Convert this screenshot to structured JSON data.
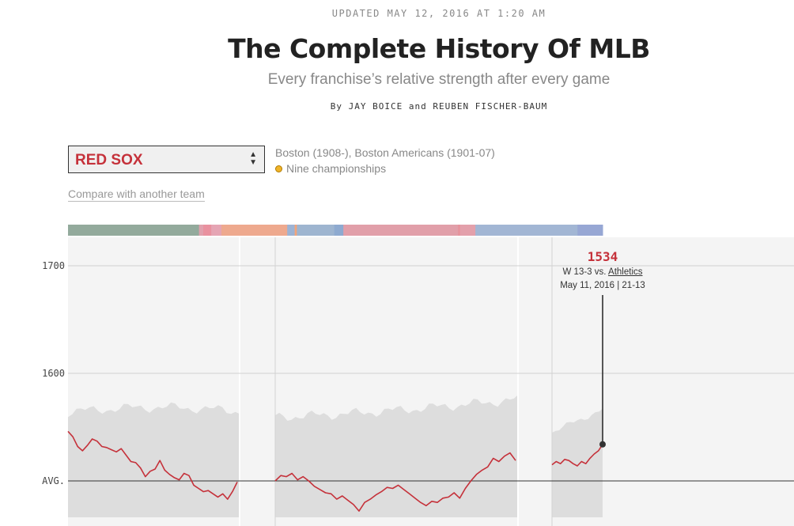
{
  "header": {
    "updated": "UPDATED MAY 12, 2016 AT 1:20 AM",
    "title": "The Complete History Of MLB",
    "subtitle": "Every franchise’s relative strength after every game",
    "byline": "By JAY BOICE and REUBEN FISCHER-BAUM"
  },
  "team_selector": {
    "selected": "RED SOX",
    "icon": "up-down-chevron-icon",
    "history": "Boston (1908-), Boston Americans (1901-07)",
    "championships": "Nine championships",
    "compare_link": "Compare with another team"
  },
  "tooltip": {
    "value": "1534",
    "result_prefix": "W 13-3 vs. ",
    "opponent": "Athletics",
    "date_record": "May 11, 2016 | 21-13"
  },
  "colors": {
    "accent": "#c5313a",
    "band_fill": "#dddddd",
    "panel_bg": "#f4f4f4",
    "championship_dot": "#f0b429"
  },
  "chart_data": {
    "type": "line",
    "title": "",
    "xlabel": "",
    "ylabel": "",
    "y_ticks": [
      {
        "value": 1700,
        "label": "1700"
      },
      {
        "value": 1600,
        "label": "1600"
      },
      {
        "value": 1500,
        "label": "AVG."
      }
    ],
    "ylim": [
      1460,
      1735
    ],
    "grid": true,
    "timeline_segments": [
      {
        "from": 0.0,
        "to": 0.245,
        "color": "#93aa9c"
      },
      {
        "from": 0.245,
        "to": 0.253,
        "color": "#e0a0ad"
      },
      {
        "from": 0.253,
        "to": 0.268,
        "color": "#e9919f"
      },
      {
        "from": 0.268,
        "to": 0.287,
        "color": "#e5a5b4"
      },
      {
        "from": 0.287,
        "to": 0.41,
        "color": "#eea98e"
      },
      {
        "from": 0.41,
        "to": 0.424,
        "color": "#9db3d4"
      },
      {
        "from": 0.424,
        "to": 0.428,
        "color": "#f2a47a"
      },
      {
        "from": 0.428,
        "to": 0.498,
        "color": "#9eb5d0"
      },
      {
        "from": 0.498,
        "to": 0.515,
        "color": "#8eaad0"
      },
      {
        "from": 0.515,
        "to": 0.73,
        "color": "#e19fa9"
      },
      {
        "from": 0.73,
        "to": 0.733,
        "color": "#e89099"
      },
      {
        "from": 0.733,
        "to": 0.762,
        "color": "#e3a0ab"
      },
      {
        "from": 0.762,
        "to": 0.953,
        "color": "#a2b6d4"
      },
      {
        "from": 0.953,
        "to": 1.0,
        "color": "#97a7d4"
      }
    ],
    "series": [
      {
        "values": [
          1546,
          1541,
          1532,
          1528,
          1533,
          1539,
          1537,
          1532,
          1531,
          1529,
          1527,
          1530,
          1524,
          1518,
          1517,
          1512,
          1504,
          1509,
          1511,
          1519,
          1510,
          1506,
          1503,
          1501,
          1507,
          1505,
          1496,
          1493,
          1490,
          1491,
          1488,
          1485,
          1488,
          1483,
          1490,
          1499
        ],
        "estimated": true
      },
      {
        "values": [
          1500,
          1505,
          1504,
          1507,
          1501,
          1504,
          1500,
          1495,
          1492,
          1489,
          1488,
          1483,
          1486,
          1482,
          1478,
          1472,
          1480,
          1483,
          1487,
          1490,
          1494,
          1493,
          1496,
          1492,
          1488,
          1484,
          1480,
          1477,
          1481,
          1480,
          1484,
          1485,
          1489,
          1484,
          1493,
          1500,
          1506,
          1510,
          1513,
          1521,
          1518,
          1523,
          1526,
          1519
        ],
        "estimated": true
      },
      {
        "values": [
          1515,
          1518,
          1516,
          1520,
          1519,
          1516,
          1514,
          1518,
          1516,
          1521,
          1525,
          1528,
          1534
        ],
        "estimated": true
      }
    ]
  }
}
